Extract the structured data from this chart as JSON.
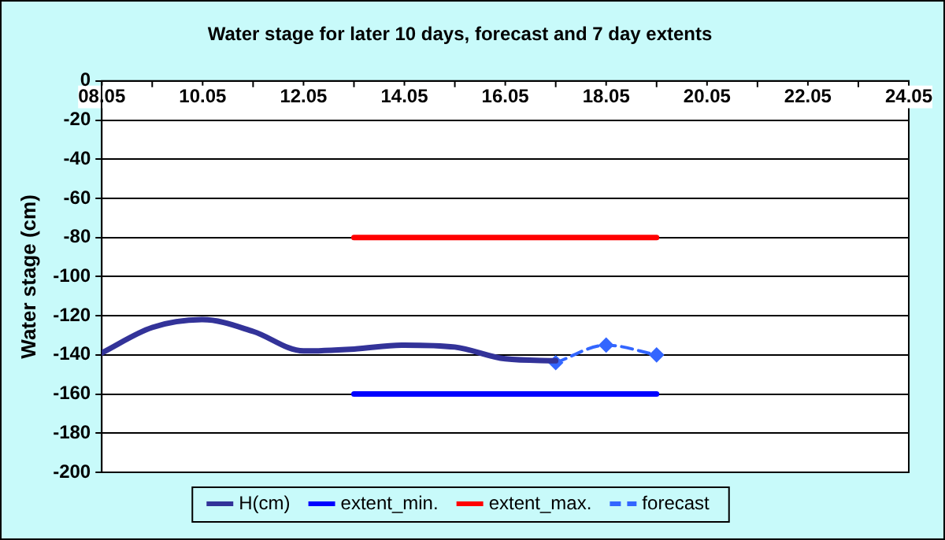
{
  "chart_data": {
    "type": "line",
    "title": "Water stage for later 10 days, forecast and 7 day extents",
    "ylabel": "Water stage (cm)",
    "xlim": [
      "--05-08",
      "--05-24"
    ],
    "xticks": [
      {
        "value": "--05-08",
        "label": "08.05"
      },
      {
        "value": "--05-10",
        "label": "10.05"
      },
      {
        "value": "--05-12",
        "label": "12.05"
      },
      {
        "value": "--05-14",
        "label": "14.05"
      },
      {
        "value": "--05-16",
        "label": "16.05"
      },
      {
        "value": "--05-18",
        "label": "18.05"
      },
      {
        "value": "--05-20",
        "label": "20.05"
      },
      {
        "value": "--05-22",
        "label": "22.05"
      },
      {
        "value": "--05-24",
        "label": "24.05"
      }
    ],
    "ylim": [
      -200,
      0
    ],
    "yticks": [
      0,
      -20,
      -40,
      -60,
      -80,
      -100,
      -120,
      -140,
      -160,
      -180,
      -200
    ],
    "grid": "y",
    "legend": "bottom",
    "series": [
      {
        "name": "H(cm)",
        "color": "#333399",
        "x": [
          "--05-08",
          "--05-09",
          "--05-10",
          "--05-11",
          "--05-12",
          "--05-13",
          "--05-14",
          "--05-15",
          "--05-16",
          "--05-17"
        ],
        "values": [
          -139,
          -126,
          -122,
          -128,
          -138,
          -137,
          -135,
          -136,
          -142,
          -143
        ],
        "marker": "none",
        "line_style": "solid"
      },
      {
        "name": "extent_min.",
        "color": "#0000ff",
        "x": [
          "--05-13",
          "--05-19"
        ],
        "values": [
          -160,
          -160
        ],
        "marker": "none",
        "line_style": "solid"
      },
      {
        "name": "extent_max.",
        "color": "#ff0000",
        "x": [
          "--05-13",
          "--05-19"
        ],
        "values": [
          -80,
          -80
        ],
        "marker": "none",
        "line_style": "solid"
      },
      {
        "name": "forecast",
        "color": "#3366ff",
        "x": [
          "--05-17",
          "--05-18",
          "--05-19"
        ],
        "values": [
          -144,
          -135,
          -140
        ],
        "marker": "diamond",
        "line_style": "dashed"
      }
    ]
  }
}
